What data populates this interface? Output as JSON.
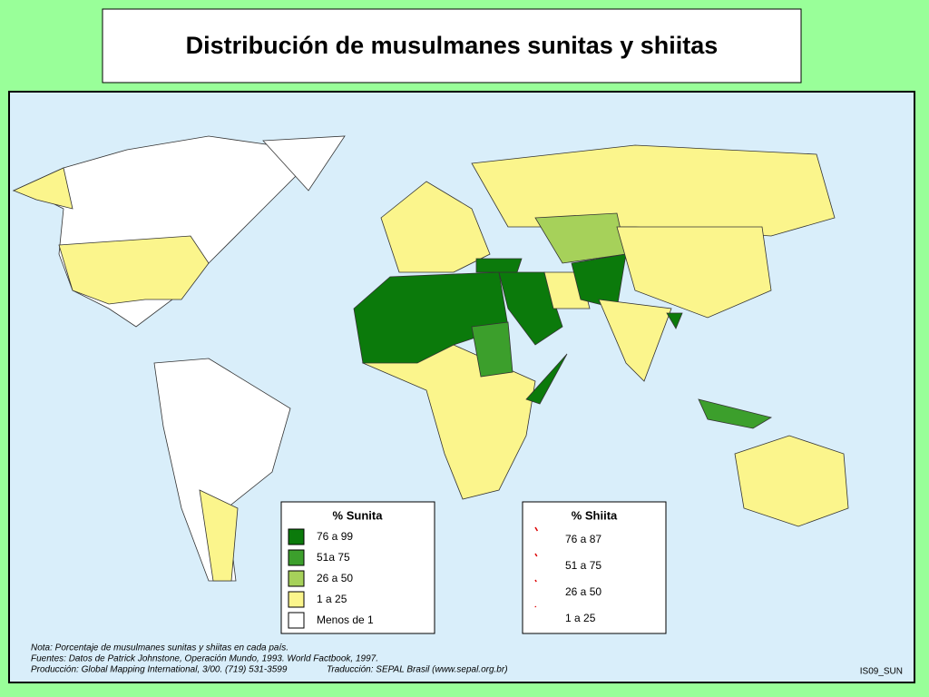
{
  "header": {
    "title": "Distribución de musulmanes sunitas y shiitas"
  },
  "legend_sunni": {
    "title": "% Sunita",
    "items": [
      {
        "label": "76 a 99",
        "color": "#0b7a0b"
      },
      {
        "label": "51a 75",
        "color": "#3c9f2c"
      },
      {
        "label": "26 a 50",
        "color": "#a6d15a"
      },
      {
        "label": "1 a 25",
        "color": "#fbf58c"
      },
      {
        "label": "Menos de 1",
        "color": "#ffffff"
      }
    ]
  },
  "legend_shiite": {
    "title": "% Shiita",
    "items": [
      {
        "label": "76 a 87"
      },
      {
        "label": "51 a 75"
      },
      {
        "label": "26 a 50"
      },
      {
        "label": "1 a 25"
      }
    ]
  },
  "notes": [
    "Nota: Porcentaje de musulmanes sunitas y shiitas en cada país.",
    "Fuentes: Datos de Patrick Johnstone, Operación Mundo, 1993. World Factbook, 1997.",
    "Producción: Global Mapping International, 3/00. (719) 531-3599",
    "Traducción: SEPAL Brasil (www.sepal.org.br)"
  ],
  "code": "IS09_SUN"
}
